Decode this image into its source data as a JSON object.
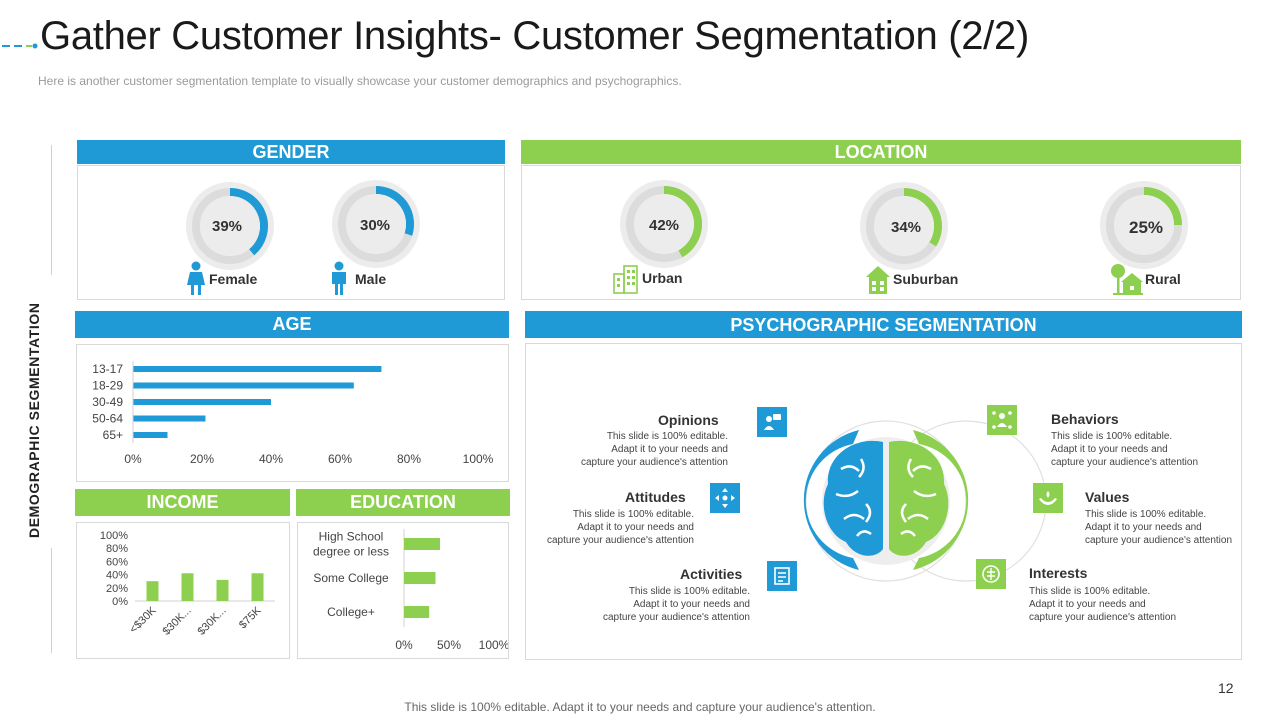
{
  "slide": {
    "title": "Gather Customer Insights- Customer Segmentation (2/2)",
    "subtitle": "Here is another customer segmentation template to visually showcase your customer demographics and psychographics.",
    "side_label": "DEMOGRAPHIC SEGMENTATION",
    "footer": "This slide is 100% editable. Adapt it to your needs and capture your audience's attention.",
    "page_number": "12"
  },
  "colors": {
    "blue": "#1f9ad6",
    "green": "#8dcf4f",
    "ring_bg": "#e6e6e6"
  },
  "gender": {
    "header": "GENDER",
    "items": [
      {
        "pct": "39%",
        "value": 39,
        "label": "Female",
        "icon": "female-icon"
      },
      {
        "pct": "30%",
        "value": 30,
        "label": "Male",
        "icon": "male-icon"
      }
    ]
  },
  "location": {
    "header": "LOCATION",
    "items": [
      {
        "pct": "42%",
        "value": 42,
        "label": "Urban",
        "icon": "building-icon"
      },
      {
        "pct": "34%",
        "value": 34,
        "label": "Suburban",
        "icon": "house-icon"
      },
      {
        "pct": "25%",
        "value": 25,
        "label": "Rural",
        "icon": "tree-house-icon"
      }
    ]
  },
  "age": {
    "header": "AGE"
  },
  "income": {
    "header": "INCOME"
  },
  "education": {
    "header": "EDUCATION"
  },
  "psychographic": {
    "header": "PSYCHOGRAPHIC SEGMENTATION",
    "items": [
      {
        "key": "opinions",
        "title": "Opinions",
        "text": [
          "This slide is 100% editable.",
          "Adapt it to your needs and",
          "capture your audience's attention"
        ],
        "icon": "opinions-icon"
      },
      {
        "key": "attitudes",
        "title": "Attitudes",
        "text": [
          "This slide is 100% editable.",
          "Adapt it to your needs and",
          "capture your audience's attention"
        ],
        "icon": "attitudes-icon"
      },
      {
        "key": "activities",
        "title": "Activities",
        "text": [
          "This slide is 100% editable.",
          "Adapt it to your needs and",
          "capture your audience's attention"
        ],
        "icon": "activities-icon"
      },
      {
        "key": "behaviors",
        "title": "Behaviors",
        "text": [
          "This slide is 100% editable.",
          "Adapt it to your needs and",
          "capture your audience's attention"
        ],
        "icon": "behaviors-icon"
      },
      {
        "key": "values",
        "title": "Values",
        "text": [
          "This slide is 100% editable.",
          "Adapt it to your needs and",
          "capture your audience's attention"
        ],
        "icon": "values-icon"
      },
      {
        "key": "interests",
        "title": "Interests",
        "text": [
          "This slide is 100% editable.",
          "Adapt it to your needs and",
          "capture your audience's attention"
        ],
        "icon": "interests-icon"
      }
    ]
  },
  "chart_data": [
    {
      "type": "bar",
      "orientation": "horizontal",
      "title": "AGE",
      "categories": [
        "13-17",
        "18-29",
        "30-49",
        "50-64",
        "65+"
      ],
      "values": [
        72,
        64,
        40,
        21,
        10
      ],
      "xlim": [
        0,
        100
      ],
      "x_ticks": [
        "0%",
        "20%",
        "40%",
        "60%",
        "80%",
        "100%"
      ],
      "grid": false
    },
    {
      "type": "bar",
      "orientation": "vertical",
      "title": "INCOME",
      "categories": [
        "<$30K",
        "$30K...",
        "$30K...",
        "$75K"
      ],
      "values": [
        30,
        42,
        32,
        42
      ],
      "ylim": [
        0,
        100
      ],
      "y_ticks": [
        "100%",
        "80%",
        "60%",
        "40%",
        "20%",
        "0%"
      ],
      "grid": false
    },
    {
      "type": "bar",
      "orientation": "horizontal",
      "title": "EDUCATION",
      "categories": [
        "High School degree or less",
        "Some College",
        "College+"
      ],
      "category_lines": [
        [
          "High School",
          "degree or less"
        ],
        [
          "Some College"
        ],
        [
          "College+"
        ]
      ],
      "values": [
        40,
        35,
        28
      ],
      "xlim": [
        0,
        100
      ],
      "x_ticks": [
        "0%",
        "50%",
        "100%"
      ],
      "grid": false
    }
  ]
}
